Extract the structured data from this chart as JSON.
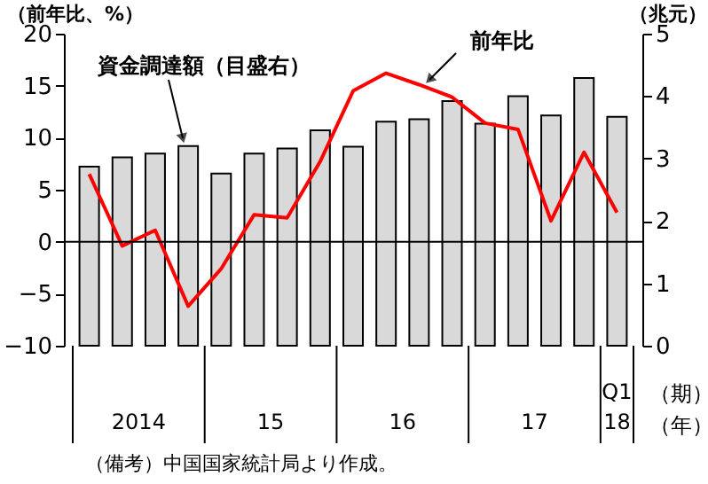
{
  "chart_data": {
    "type": "bar",
    "categories": [
      null,
      null,
      null,
      null,
      null,
      null,
      null,
      null,
      null,
      null,
      null,
      null,
      null,
      null,
      null,
      null,
      "Q1"
    ],
    "ylabel": "（前年比、%）",
    "y2label": "（兆元）",
    "ylim": [
      -10,
      20
    ],
    "yticks": [
      -10,
      -5,
      0,
      5,
      10,
      15,
      20
    ],
    "y2lim": [
      0,
      5
    ],
    "y2ticks": [
      0,
      1,
      2,
      3,
      4,
      5
    ],
    "grid": false,
    "series": [
      {
        "name": "資金調達額（目盛右）",
        "axis": "y2",
        "color": "#d9d9d9",
        "values": [
          2.87,
          3.02,
          3.08,
          3.2,
          2.76,
          3.08,
          3.16,
          3.45,
          3.19,
          3.59,
          3.63,
          3.92,
          3.56,
          4.0,
          3.69,
          4.29,
          3.67
        ]
      },
      {
        "name": "前年比",
        "type": "line",
        "axis": "y",
        "color": "#ff0000",
        "values": [
          6.5,
          -0.4,
          1.1,
          -6.2,
          -2.6,
          2.6,
          2.3,
          7.7,
          14.5,
          16.2,
          15.1,
          13.9,
          11.4,
          10.8,
          2.0,
          8.6,
          2.8
        ]
      }
    ],
    "ref_lines": [
      {
        "axis": "y",
        "value": 0
      }
    ],
    "annotations": [
      "2014",
      "15",
      "16",
      "17",
      "18",
      "（期）",
      "（年）",
      "（備考）中国国家統計局より作成。"
    ]
  }
}
